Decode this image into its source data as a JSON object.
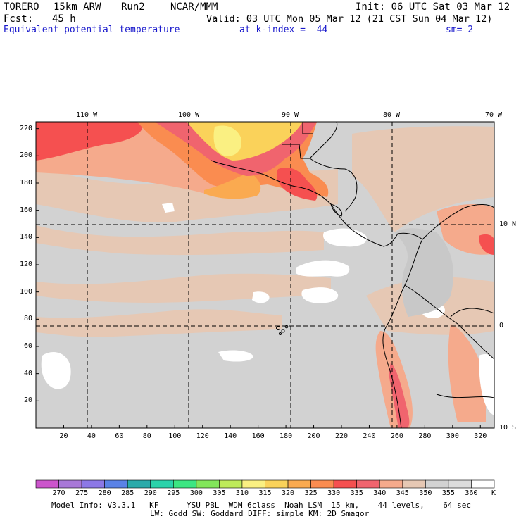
{
  "header": {
    "model": "TORERO",
    "resolution": "15km ARW",
    "run": "Run2",
    "org": "NCAR/MMM",
    "init": "Init: 06 UTC Sat 03 Mar 12",
    "fcst_label": "Fcst:",
    "fcst_value": "45 h",
    "valid": "Valid: 03 UTC Mon 05 Mar 12 (21 CST Sun 04 Mar 12)",
    "field": "Equivalent potential temperature",
    "level": "at k-index =  44",
    "smoothing": "sm= 2"
  },
  "map": {
    "lon_labels": [
      "110 W",
      "100 W",
      "90 W",
      "80 W",
      "70 W"
    ],
    "lat_labels": [
      "10 N",
      "0",
      "10 S"
    ],
    "y_ticks": [
      "220",
      "200",
      "180",
      "160",
      "140",
      "120",
      "100",
      "80",
      "60",
      "40",
      "20"
    ],
    "x_ticks": [
      "20",
      "40",
      "60",
      "80",
      "100",
      "120",
      "140",
      "160",
      "180",
      "200",
      "220",
      "240",
      "260",
      "280",
      "300",
      "320"
    ],
    "x_range": [
      0,
      330
    ],
    "y_range": [
      0,
      225
    ]
  },
  "legend": {
    "labels": [
      "270",
      "275",
      "280",
      "285",
      "290",
      "295",
      "300",
      "305",
      "310",
      "315",
      "320",
      "325",
      "330",
      "335",
      "340",
      "345",
      "350",
      "355",
      "360"
    ],
    "unit": "K",
    "colors": [
      "#cc55cc",
      "#a878d8",
      "#8c78e6",
      "#5a82e6",
      "#2aaaaa",
      "#2ad2aa",
      "#3ce682",
      "#82e65a",
      "#beeb5a",
      "#faf082",
      "#fad25a",
      "#faaa50",
      "#fa8c50",
      "#f55050",
      "#f0646e",
      "#f5aa8c",
      "#e6c8b4",
      "#d2d2d2",
      "#dcdcdc",
      "#ffffff"
    ]
  },
  "footer": {
    "line1": "Model Info: V3.3.1   KF      YSU PBL  WDM 6class  Noah LSM  15 km,    44 levels,    64 sec",
    "line2": "LW: Godd SW: Goddard DIFF: simple KM: 2D Smagor"
  }
}
